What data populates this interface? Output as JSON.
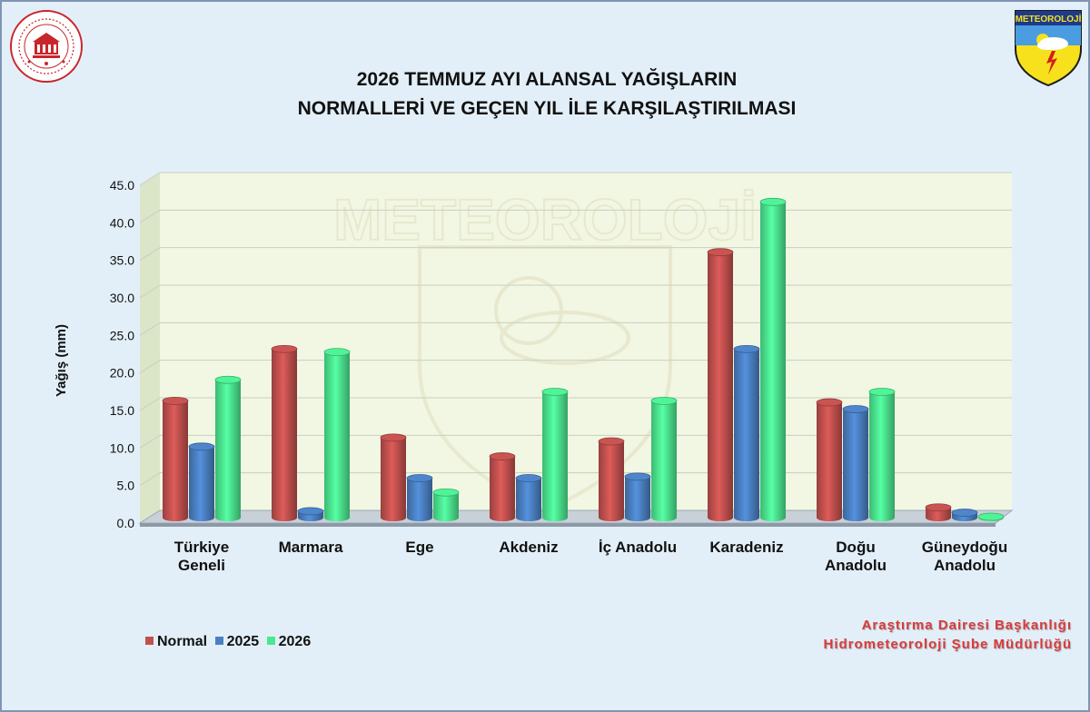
{
  "title_lines": [
    "2026 TEMMUZ AYI ALANSAL YAĞIŞLARIN",
    "NORMALLERİ VE GEÇEN YIL İLE KARŞILAŞTIRILMASI"
  ],
  "credit_lines": [
    "Araştırma Dairesi Başkanlığı",
    "Hidrometeoroloji Şube Müdürlüğü"
  ],
  "logo_right_text": "METEOROLOJİ",
  "watermark_text": "METEOROLOJİ",
  "colors": {
    "normal": "#c0504d",
    "y2025": "#4a7fc1",
    "y2026": "#4be88f",
    "plot_bg": "#f1f7e3"
  },
  "chart_data": {
    "type": "bar",
    "title": "2026 TEMMUZ AYI ALANSAL YAĞIŞLARIN NORMALLERİ VE GEÇEN YIL İLE KARŞILAŞTIRILMASI",
    "xlabel": "",
    "ylabel": "Yağış (mm)",
    "ylim": [
      0,
      45
    ],
    "yticks": [
      "0.0",
      "5.0",
      "10.0",
      "15.0",
      "20.0",
      "25.0",
      "30.0",
      "35.0",
      "40.0",
      "45.0"
    ],
    "grid": true,
    "legend_position": "bottom-left",
    "categories": [
      [
        "Türkiye",
        "Geneli"
      ],
      [
        "Marmara"
      ],
      [
        "Ege"
      ],
      [
        "Akdeniz"
      ],
      [
        "İç Anadolu"
      ],
      [
        "Karadeniz"
      ],
      [
        "Doğu",
        "Anadolu"
      ],
      [
        "Güneydoğu",
        "Anadolu"
      ]
    ],
    "series": [
      {
        "name": "Normal",
        "values": [
          15.8,
          22.7,
          10.9,
          8.4,
          10.4,
          35.6,
          15.6,
          1.6
        ]
      },
      {
        "name": "2025",
        "values": [
          9.7,
          1.1,
          5.5,
          5.5,
          5.7,
          22.7,
          14.7,
          0.9
        ]
      },
      {
        "name": "2026",
        "values": [
          18.6,
          22.3,
          3.6,
          17.0,
          15.8,
          42.3,
          17.0,
          0.1
        ]
      }
    ]
  }
}
